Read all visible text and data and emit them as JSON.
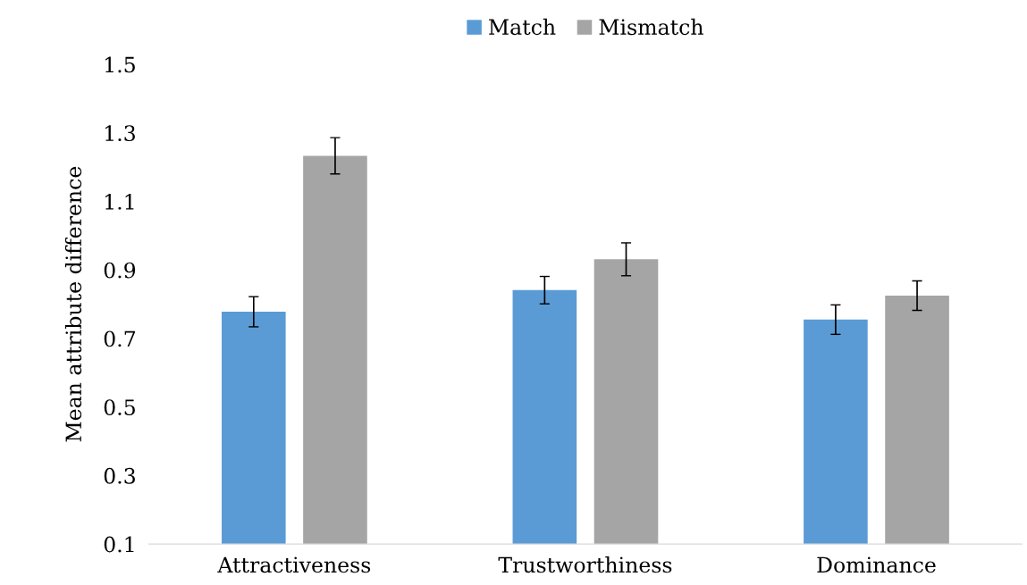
{
  "chart_data": {
    "type": "bar",
    "ylabel": "Mean attribute difference",
    "categories": [
      "Attractiveness",
      "Trustworthiness",
      "Dominance"
    ],
    "series": [
      {
        "name": "Match",
        "color": "#5b9bd5",
        "values": [
          0.778,
          0.841,
          0.755
        ],
        "errors": [
          0.044,
          0.04,
          0.043
        ]
      },
      {
        "name": "Mismatch",
        "color": "#a5a5a5",
        "values": [
          1.233,
          0.931,
          0.825
        ],
        "errors": [
          0.053,
          0.048,
          0.043
        ]
      }
    ],
    "ylim": [
      0.1,
      1.5
    ],
    "yticks": [
      0.1,
      0.3,
      0.5,
      0.7,
      0.9,
      1.1,
      1.3,
      1.5
    ],
    "grid": false,
    "legend": "top"
  }
}
